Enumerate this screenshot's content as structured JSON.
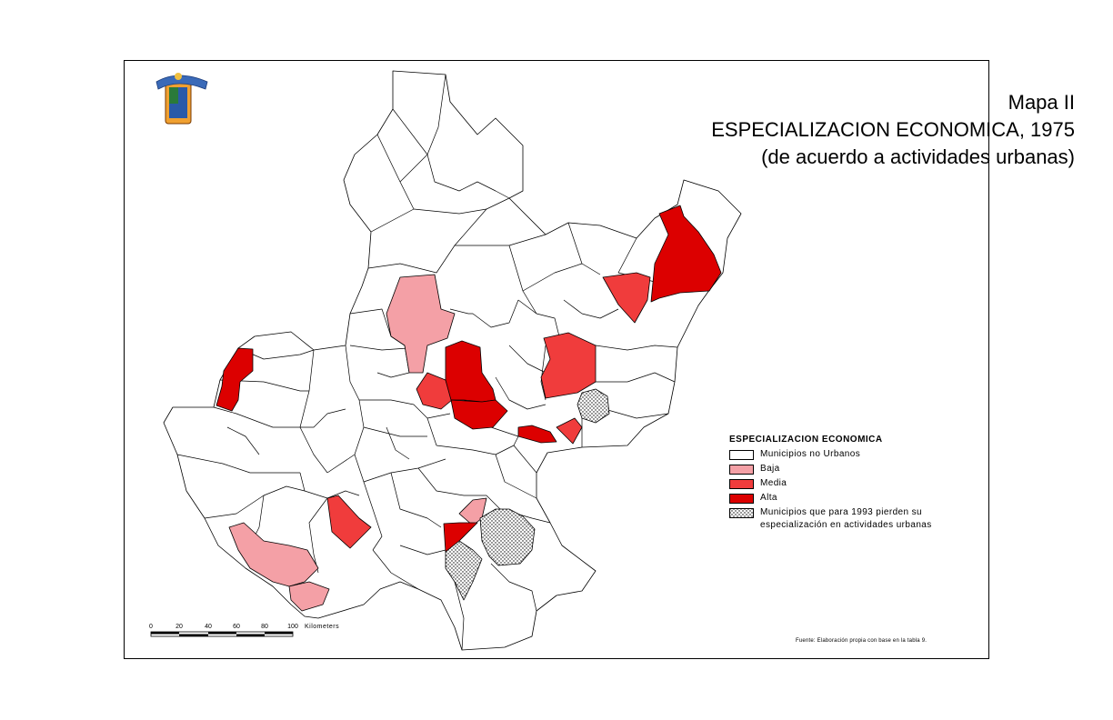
{
  "title": {
    "line1": "Mapa II",
    "line2": "ESPECIALIZACION ECONOMICA, 1975",
    "line3": "(de acuerdo a actividades urbanas)"
  },
  "legend": {
    "title": "ESPECIALIZACION ECONOMICA",
    "items": [
      {
        "label": "Municipios no Urbanos",
        "color": "#ffffff"
      },
      {
        "label": "Baja",
        "color": "#f4a0a6"
      },
      {
        "label": "Media",
        "color": "#f03c3c"
      },
      {
        "label": "Alta",
        "color": "#dc0000"
      },
      {
        "label": "Municipios que para 1993 pierden su",
        "pattern": "dotted"
      }
    ],
    "note_line2": "especialización en actividades urbanas"
  },
  "scale": {
    "ticks": [
      "0",
      "20",
      "40",
      "60",
      "80",
      "100"
    ],
    "unit": "Kilometers"
  },
  "source": "Fuente: Elaboración propia con base en la tabla 9.",
  "colors": {
    "no_urbano": "#ffffff",
    "baja": "#f4a0a6",
    "media": "#f03c3c",
    "alta": "#dc0000",
    "border": "#000000"
  },
  "logo": {
    "name": "coat-of-arms"
  }
}
